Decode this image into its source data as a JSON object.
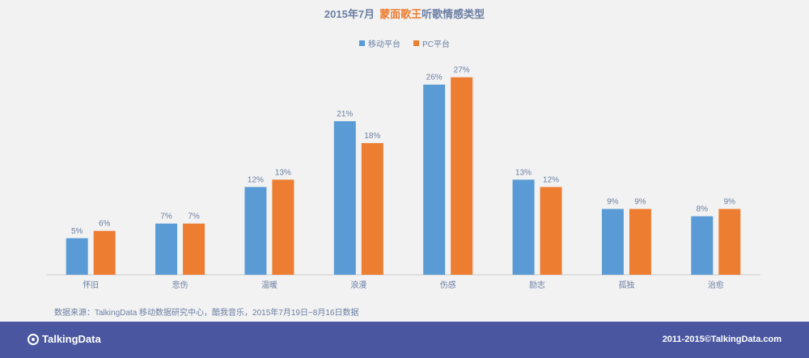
{
  "header": {
    "title_prefix": "2015年7月",
    "title_highlight": "蒙面歌王",
    "title_suffix": "听歌情感类型"
  },
  "legend": [
    {
      "label": "移动平台",
      "color": "#5b9bd5"
    },
    {
      "label": "PC平台",
      "color": "#ed7d31"
    }
  ],
  "chart_data": {
    "type": "bar",
    "title": "2015年7月 蒙面歌王听歌情感类型",
    "categories": [
      "怀旧",
      "悲伤",
      "温暖",
      "浪漫",
      "伤感",
      "励志",
      "孤独",
      "治愈"
    ],
    "series": [
      {
        "name": "移动平台",
        "color": "#5b9bd5",
        "values": [
          5,
          7,
          12,
          21,
          26,
          13,
          9,
          8
        ]
      },
      {
        "name": "PC平台",
        "color": "#ed7d31",
        "values": [
          6,
          7,
          13,
          18,
          27,
          12,
          9,
          9
        ]
      }
    ],
    "value_suffix": "%",
    "ylim": [
      0,
      27
    ],
    "grid": false,
    "legend_position": "top-center"
  },
  "source_note": "数据来源：TalkingData 移动数据研究中心，酷我音乐，2015年7月19日~8月16日数据",
  "footer": {
    "logo_text": "TalkingData",
    "copyright": "2011-2015©TalkingData.com"
  }
}
